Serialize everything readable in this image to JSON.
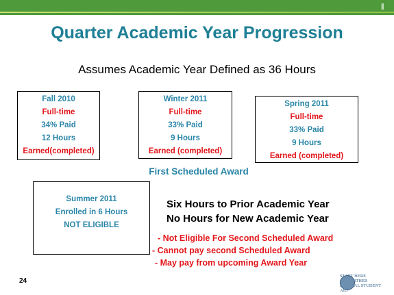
{
  "header": {
    "title": "Quarter Academic Year Progression",
    "subtitle": "Assumes Academic Year Defined as 36 Hours"
  },
  "terms": [
    {
      "lines": [
        "Fall 2010",
        "Full-time",
        "34% Paid",
        "12 Hours",
        "Earned(completed)"
      ]
    },
    {
      "lines": [
        "Winter 2011",
        "Full-time",
        "33% Paid",
        "9 Hours",
        "Earned (completed)"
      ]
    },
    {
      "lines": [
        "Spring 2011",
        "Full-time",
        "33% Paid",
        "9 Hours",
        "Earned (completed)"
      ]
    }
  ],
  "award_label": "First Scheduled Award",
  "summer": {
    "lines": [
      "Summer 2011",
      "Enrolled in 6 Hours",
      "NOT ELIGIBLE"
    ]
  },
  "notes": [
    "Six Hours to Prior Academic Year",
    "No Hours for New Academic Year"
  ],
  "bullets": [
    "- Not Eligible For Second Scheduled Award",
    "-  Cannot pay second Scheduled Award",
    "- May pay from upcoming Award Year"
  ],
  "page_number": "24",
  "logo": {
    "line1": "START HERE",
    "line2": "GO FURTHER",
    "line3": "FEDERAL STUDENT AID"
  }
}
